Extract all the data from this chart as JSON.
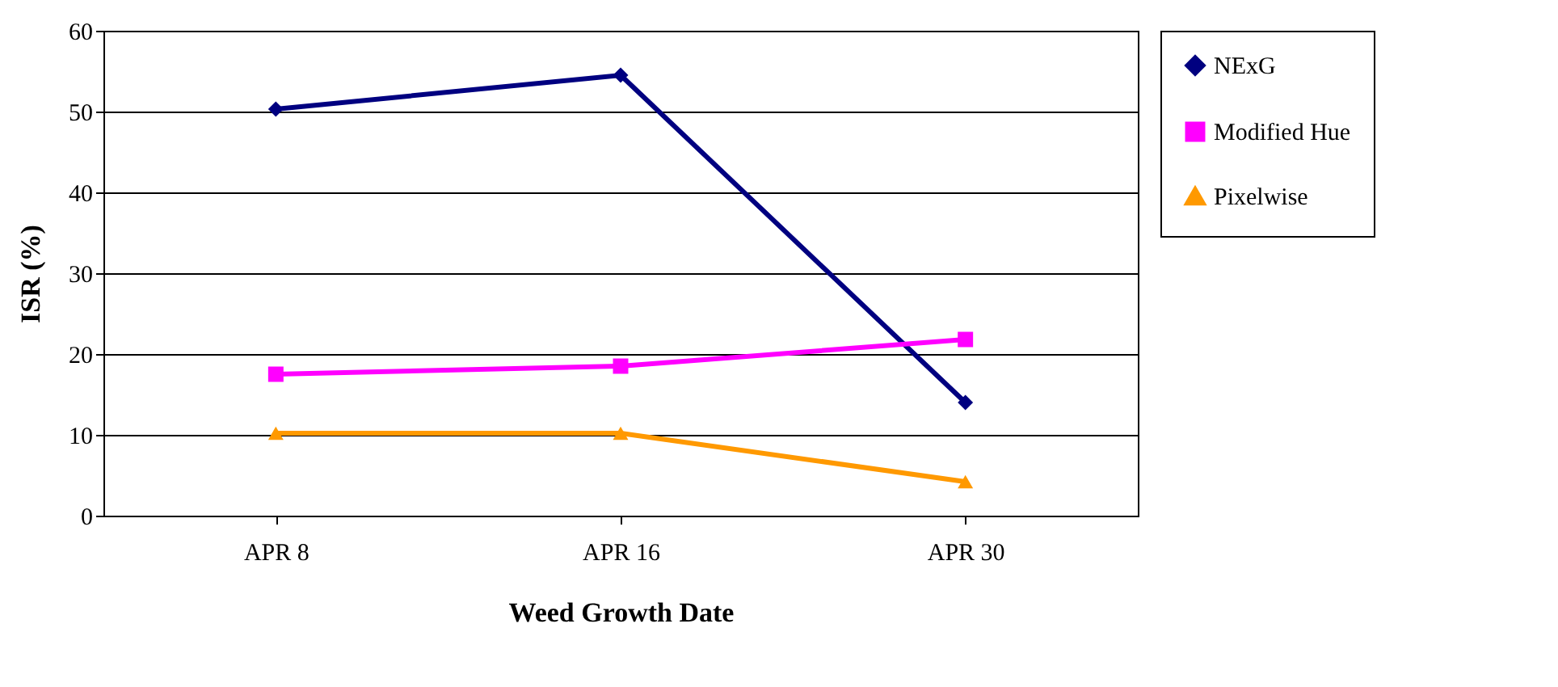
{
  "chart_data": {
    "type": "line",
    "xlabel": "Weed Growth Date",
    "ylabel": "ISR (%)",
    "categories": [
      "APR 8",
      "APR 16",
      "APR 30"
    ],
    "series": [
      {
        "name": "NExG",
        "color": "#000080",
        "marker": "diamond",
        "values": [
          50.3,
          54.5,
          14
        ]
      },
      {
        "name": "Modified Hue",
        "color": "#ff00ff",
        "marker": "square",
        "values": [
          17.5,
          18.5,
          21.8
        ]
      },
      {
        "name": "Pixelwise",
        "color": "#ff9900",
        "marker": "triangle",
        "values": [
          10.2,
          10.2,
          4.2
        ]
      }
    ],
    "ylim": [
      0,
      60
    ],
    "yticks": [
      0,
      10,
      20,
      30,
      40,
      50,
      60
    ],
    "grid": "y",
    "legend": "right",
    "line_style": "solid"
  }
}
